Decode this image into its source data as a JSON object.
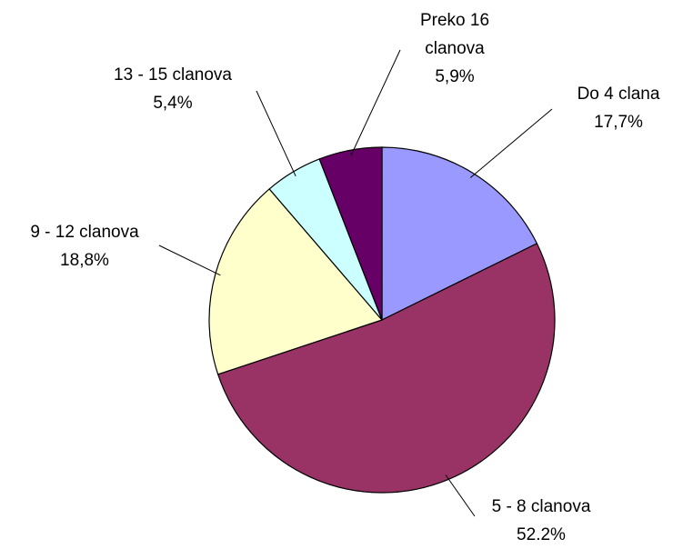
{
  "chart_data": {
    "type": "pie",
    "categories": [
      "Do 4 clana",
      "5 - 8 clanova",
      "9 - 12 clanova",
      "13 - 15 clanova",
      "Preko 16 clanova"
    ],
    "values": [
      17.7,
      52.2,
      18.8,
      5.4,
      5.9
    ],
    "value_labels": [
      "17,7%",
      "52.2%",
      "18,8%",
      "5,4%",
      "5,9%"
    ],
    "colors": [
      "#9999ff",
      "#993366",
      "#ffffcc",
      "#ccffff",
      "#660066"
    ]
  }
}
